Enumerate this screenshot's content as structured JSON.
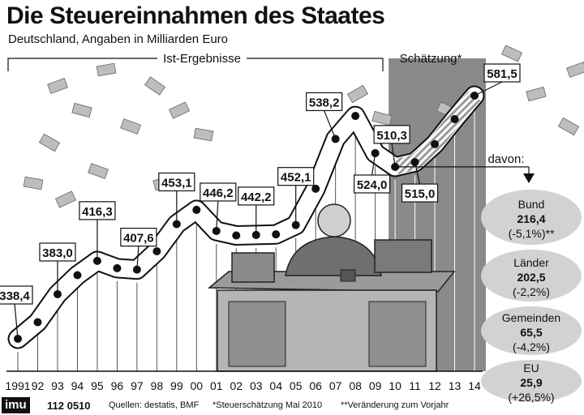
{
  "title": "Die Steuereinnahmen des Staates",
  "subtitle": "Deutschland, Angaben in Milliarden Euro",
  "segment_labels": {
    "results": "Ist-Ergebnisse",
    "estimate": "Schätzung*"
  },
  "davon_label": "davon:",
  "footer": {
    "logo": "imu",
    "code": "112 0510",
    "sources": "Quellen: destatis, BMF",
    "estimate_note": "*Steuerschätzung Mai 2010",
    "change_note": "**Veränderung zum Vorjahr"
  },
  "breakdown": [
    {
      "name": "Bund",
      "value": "216,4",
      "change": "(-5,1%)**"
    },
    {
      "name": "Länder",
      "value": "202,5",
      "change": "(-2,2%)"
    },
    {
      "name": "Gemeinden",
      "value": "65,5",
      "change": "(-4,2%)"
    },
    {
      "name": "EU",
      "value": "25,9",
      "change": "(+26,5%)"
    }
  ],
  "colors": {
    "band": "#ffffff",
    "dot": "#111111",
    "estimate_bg": "#8a8a8a",
    "bubble": "#d2d2d2"
  },
  "chart_data": {
    "type": "line",
    "x": [
      "1991",
      "92",
      "93",
      "94",
      "95",
      "96",
      "97",
      "98",
      "99",
      "00",
      "01",
      "02",
      "03",
      "04",
      "05",
      "06",
      "07",
      "08",
      "09",
      "10",
      "11",
      "12",
      "13",
      "14"
    ],
    "values": [
      338.4,
      355.0,
      383.0,
      402.0,
      416.3,
      409.0,
      407.6,
      425.9,
      453.1,
      467.3,
      446.2,
      441.7,
      442.2,
      442.8,
      452.1,
      488.4,
      538.2,
      561.2,
      524.0,
      510.3,
      515.0,
      533.0,
      558.0,
      581.5
    ],
    "labeled_points": [
      {
        "x": "1991",
        "label": "338,4"
      },
      {
        "x": "93",
        "label": "383,0"
      },
      {
        "x": "95",
        "label": "416,3"
      },
      {
        "x": "97",
        "label": "407,6"
      },
      {
        "x": "99",
        "label": "453,1"
      },
      {
        "x": "01",
        "label": "446,2"
      },
      {
        "x": "03",
        "label": "442,2"
      },
      {
        "x": "05",
        "label": "452,1"
      },
      {
        "x": "07",
        "label": "538,2"
      },
      {
        "x": "09",
        "label": "524,0"
      },
      {
        "x": "10",
        "label": "510,3"
      },
      {
        "x": "11",
        "label": "515,0"
      },
      {
        "x": "14",
        "label": "581,5"
      }
    ],
    "estimate_from": "10",
    "ylim": [
      320,
      600
    ],
    "grid": true
  }
}
